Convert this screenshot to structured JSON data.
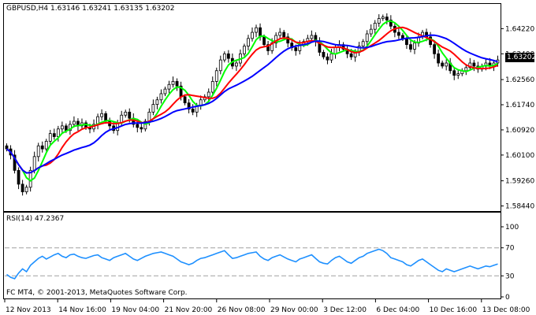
{
  "header": {
    "symbol": "GBPUSD,H4",
    "ohlc": "1.63146 1.63241 1.63135 1.63202"
  },
  "rsi_header": "RSI(14) 47.2367",
  "copyright": "FC MT4, © 2001-2013, MetaQuotes Software Corp.",
  "current_price": "1.63202",
  "colors": {
    "bull": "#000000",
    "bear": "#000000",
    "ma_fast": "#00ff00",
    "ma_mid": "#ff0000",
    "ma_slow": "#0000ff",
    "rsi": "#1e90ff",
    "frame": "#000000",
    "background": "#ffffff",
    "level_line": "#a0a0a0"
  },
  "chart_data": [
    {
      "type": "candlestick",
      "title": "GBPUSD,H4",
      "ylim": [
        1.583,
        1.65
      ],
      "y_ticks": [
        "1.64220",
        "1.63400",
        "1.62560",
        "1.61740",
        "1.60920",
        "1.60100",
        "1.59260",
        "1.58440"
      ],
      "y_tick_values": [
        1.6422,
        1.634,
        1.6256,
        1.6174,
        1.6092,
        1.601,
        1.5926,
        1.5844
      ],
      "x_ticks": [
        "12 Nov 2013",
        "14 Nov 16:00",
        "19 Nov 04:00",
        "21 Nov 20:00",
        "26 Nov 08:00",
        "29 Nov 00:00",
        "3 Dec 12:00",
        "6 Dec 04:00",
        "10 Dec 16:00",
        "13 Dec 08:00"
      ],
      "bars": 125,
      "close": [
        1.603,
        1.601,
        1.596,
        1.5915,
        1.589,
        1.5905,
        1.596,
        1.6005,
        1.604,
        1.603,
        1.6055,
        1.608,
        1.607,
        1.6095,
        1.6105,
        1.609,
        1.611,
        1.612,
        1.6105,
        1.6115,
        1.61,
        1.6095,
        1.611,
        1.6135,
        1.6145,
        1.612,
        1.6105,
        1.609,
        1.6115,
        1.614,
        1.615,
        1.613,
        1.611,
        1.61,
        1.6095,
        1.612,
        1.615,
        1.6175,
        1.619,
        1.621,
        1.6225,
        1.624,
        1.625,
        1.6235,
        1.62,
        1.618,
        1.616,
        1.615,
        1.617,
        1.619,
        1.62,
        1.6215,
        1.625,
        1.6285,
        1.632,
        1.634,
        1.6325,
        1.63,
        1.631,
        1.634,
        1.6365,
        1.639,
        1.641,
        1.6425,
        1.6395,
        1.637,
        1.635,
        1.6375,
        1.64,
        1.641,
        1.6395,
        1.6375,
        1.636,
        1.635,
        1.637,
        1.638,
        1.639,
        1.64,
        1.638,
        1.6345,
        1.633,
        1.632,
        1.634,
        1.636,
        1.637,
        1.6355,
        1.634,
        1.633,
        1.6345,
        1.6365,
        1.638,
        1.6405,
        1.642,
        1.644,
        1.6455,
        1.646,
        1.645,
        1.643,
        1.641,
        1.64,
        1.639,
        1.637,
        1.6355,
        1.6375,
        1.6395,
        1.641,
        1.6395,
        1.637,
        1.634,
        1.631,
        1.63,
        1.631,
        1.6285,
        1.627,
        1.6275,
        1.6285,
        1.6295,
        1.631,
        1.63,
        1.629,
        1.63,
        1.631,
        1.63,
        1.631,
        1.632
      ],
      "series": [
        {
          "values_ref": "ma_fast",
          "color": "#00ff00"
        },
        {
          "values_ref": "ma_mid",
          "color": "#ff0000"
        },
        {
          "values_ref": "ma_slow",
          "color": "#0000ff"
        }
      ]
    },
    {
      "type": "line",
      "title": "RSI(14) 47.2367",
      "ylim": [
        0,
        100
      ],
      "y_ticks": [
        "100",
        "70",
        "30",
        "0"
      ],
      "y_tick_values": [
        100,
        70,
        30,
        0
      ],
      "levels": [
        70,
        30
      ],
      "values": [
        32,
        28,
        26,
        34,
        40,
        36,
        45,
        50,
        55,
        58,
        54,
        57,
        60,
        62,
        58,
        56,
        60,
        61,
        58,
        56,
        55,
        57,
        59,
        60,
        56,
        54,
        52,
        56,
        58,
        60,
        62,
        58,
        54,
        52,
        55,
        58,
        60,
        62,
        63,
        64,
        62,
        60,
        58,
        54,
        50,
        48,
        46,
        48,
        52,
        55,
        56,
        58,
        60,
        62,
        64,
        66,
        60,
        55,
        56,
        58,
        60,
        62,
        63,
        64,
        58,
        54,
        52,
        56,
        58,
        60,
        57,
        54,
        52,
        50,
        54,
        56,
        58,
        60,
        55,
        50,
        48,
        47,
        52,
        56,
        58,
        54,
        50,
        48,
        52,
        56,
        58,
        62,
        64,
        66,
        68,
        66,
        62,
        56,
        54,
        52,
        50,
        46,
        44,
        48,
        52,
        54,
        50,
        46,
        42,
        38,
        36,
        40,
        38,
        36,
        38,
        40,
        42,
        44,
        42,
        40,
        42,
        44,
        43,
        45,
        47
      ]
    }
  ]
}
